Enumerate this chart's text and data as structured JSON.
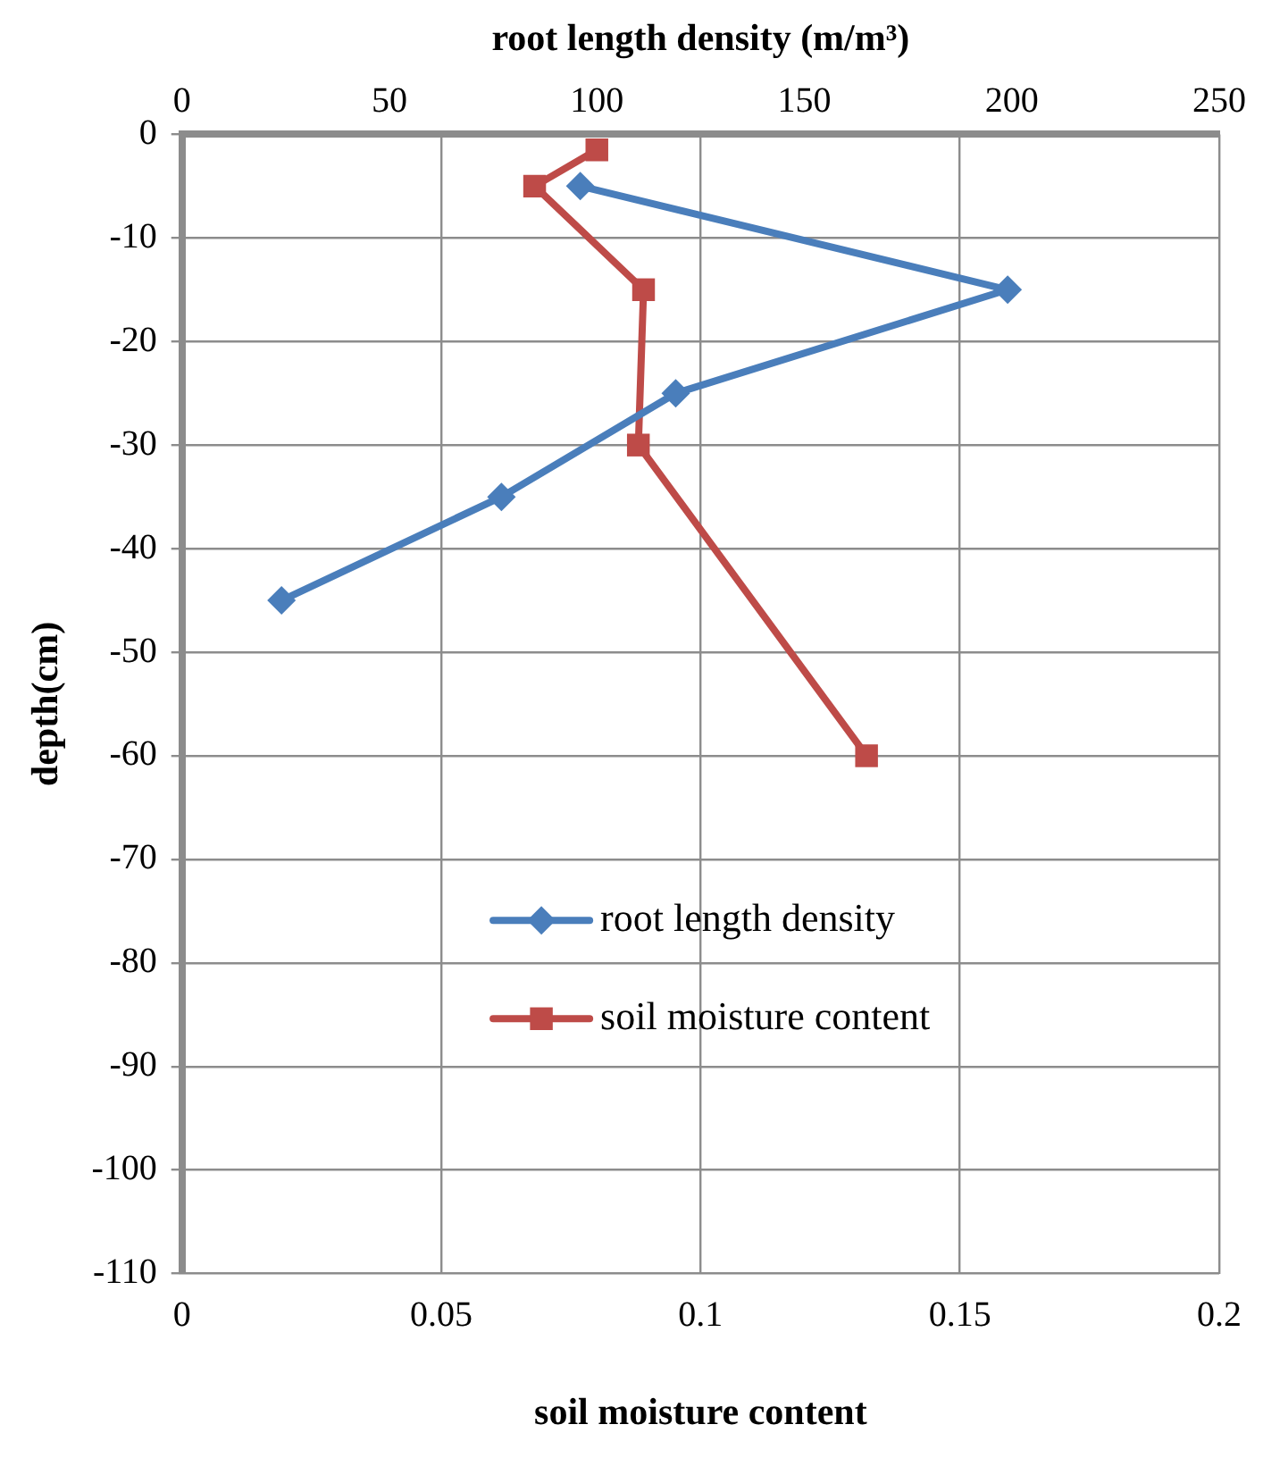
{
  "chart_data": {
    "type": "line",
    "xlabel": "soil moisture content",
    "x2label": "root length density (m/m³)",
    "ylabel": "depth(cm)",
    "xlim": [
      0,
      0.2
    ],
    "xticks": [
      0,
      0.05,
      0.1,
      0.15,
      0.2
    ],
    "x2lim": [
      0,
      250
    ],
    "x2ticks": [
      0,
      50,
      100,
      150,
      200,
      250
    ],
    "ylim": [
      -110,
      0
    ],
    "yticks": [
      -110,
      -100,
      -90,
      -80,
      -70,
      -60,
      -50,
      -40,
      -30,
      -20,
      -10,
      0
    ],
    "grid": true,
    "legend": "center",
    "series": [
      {
        "name": "root length density",
        "color": "#4a7ebb",
        "axis": "x2",
        "marker": "diamond",
        "x": [
          96,
          199,
          119,
          77,
          24
        ],
        "values": [
          -5,
          -15,
          -25,
          -35,
          -45
        ]
      },
      {
        "name": "soil moisture content",
        "color": "#be4b48",
        "marker": "square",
        "x": [
          0.08,
          0.068,
          0.089,
          0.088,
          0.132
        ],
        "values": [
          -1.5,
          -5,
          -15,
          -30,
          -60
        ]
      }
    ]
  }
}
